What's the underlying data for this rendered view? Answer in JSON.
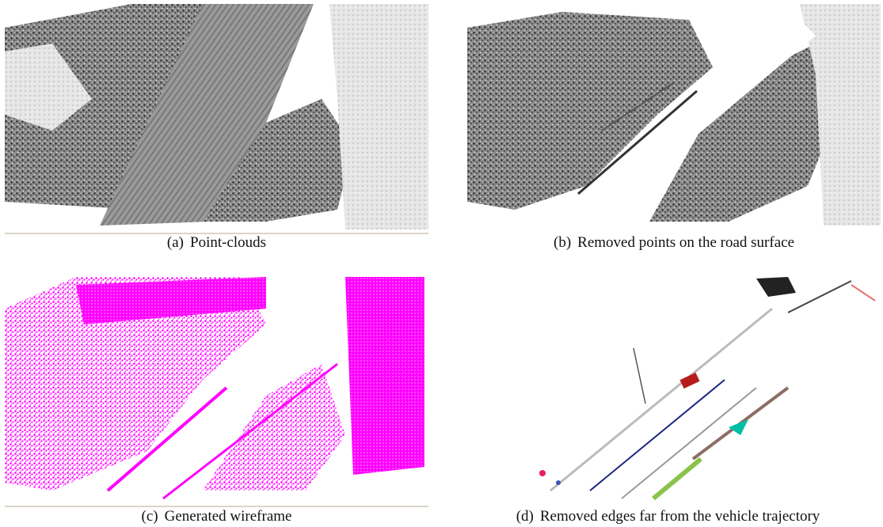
{
  "subfigures": [
    {
      "label": "(a)",
      "caption": "Point-clouds"
    },
    {
      "label": "(b)",
      "caption": "Removed points on the road surface"
    },
    {
      "label": "(c)",
      "caption": "Generated wireframe"
    },
    {
      "label": "(d)",
      "caption": "Removed edges far from the vehicle trajectory"
    }
  ]
}
